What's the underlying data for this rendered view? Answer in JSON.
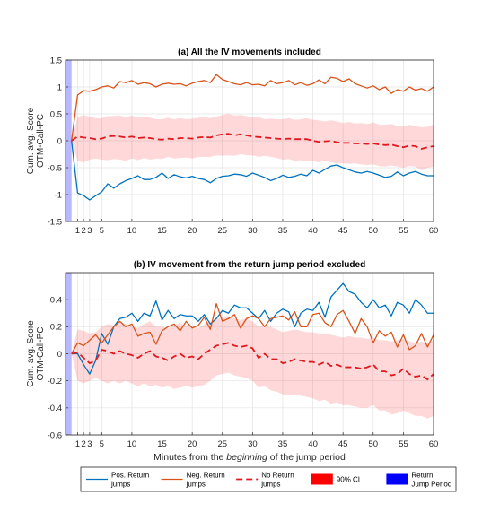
{
  "chart_data": [
    {
      "type": "line",
      "title": "(a) All the IV movements included",
      "ylabel_line1": "Cum. avg. Score",
      "ylabel_line2": "OTM-Call-PC",
      "xlabel": "",
      "xlim": [
        -1,
        60
      ],
      "ylim": [
        -1.5,
        1.5
      ],
      "xticks": [
        1,
        2,
        3,
        5,
        10,
        15,
        20,
        25,
        30,
        35,
        40,
        45,
        50,
        55,
        60
      ],
      "yticks": [
        -1.5,
        -1,
        -0.5,
        0,
        0.5,
        1,
        1.5
      ],
      "ytick_labels": [
        "-1.5",
        "-1",
        "-0.5",
        "0",
        "0.5",
        "1",
        "1.5"
      ],
      "grid": true,
      "jump_period": [
        -1,
        0
      ],
      "x": [
        0,
        1,
        2,
        3,
        4,
        5,
        6,
        7,
        8,
        9,
        10,
        11,
        12,
        13,
        14,
        15,
        16,
        17,
        18,
        19,
        20,
        21,
        22,
        23,
        24,
        25,
        26,
        27,
        28,
        29,
        30,
        31,
        32,
        33,
        34,
        35,
        36,
        37,
        38,
        39,
        40,
        41,
        42,
        43,
        44,
        45,
        46,
        47,
        48,
        49,
        50,
        51,
        52,
        53,
        54,
        55,
        56,
        57,
        58,
        59,
        60
      ],
      "series": [
        {
          "name": "Pos. Return jumps",
          "color": "#0072BD",
          "style": "solid",
          "values": [
            0,
            -0.97,
            -1.02,
            -1.1,
            -1.02,
            -0.95,
            -0.8,
            -0.88,
            -0.8,
            -0.74,
            -0.7,
            -0.65,
            -0.72,
            -0.72,
            -0.68,
            -0.6,
            -0.7,
            -0.63,
            -0.67,
            -0.69,
            -0.66,
            -0.7,
            -0.72,
            -0.78,
            -0.7,
            -0.66,
            -0.65,
            -0.62,
            -0.63,
            -0.66,
            -0.6,
            -0.64,
            -0.68,
            -0.74,
            -0.7,
            -0.64,
            -0.68,
            -0.66,
            -0.62,
            -0.65,
            -0.55,
            -0.6,
            -0.53,
            -0.47,
            -0.45,
            -0.5,
            -0.54,
            -0.58,
            -0.6,
            -0.57,
            -0.6,
            -0.64,
            -0.68,
            -0.66,
            -0.58,
            -0.65,
            -0.6,
            -0.57,
            -0.62,
            -0.65,
            -0.65
          ]
        },
        {
          "name": "Neg. Return jumps",
          "color": "#D95319",
          "style": "solid",
          "values": [
            0,
            0.85,
            0.93,
            0.92,
            0.95,
            1.0,
            1.02,
            0.98,
            1.1,
            1.08,
            1.12,
            1.05,
            1.08,
            1.06,
            1.0,
            1.05,
            1.07,
            1.05,
            1.06,
            1.02,
            1.07,
            1.1,
            1.12,
            1.08,
            1.23,
            1.14,
            1.1,
            1.06,
            1.04,
            1.08,
            1.04,
            1.05,
            1.02,
            1.12,
            1.06,
            1.08,
            1.12,
            1.04,
            1.08,
            1.03,
            1.06,
            1.13,
            1.06,
            1.18,
            1.16,
            1.1,
            1.15,
            1.06,
            1.02,
            0.98,
            1.02,
            0.95,
            1.0,
            0.88,
            0.95,
            0.92,
            1.0,
            0.94,
            0.97,
            0.92,
            1.0
          ]
        },
        {
          "name": "No Return jumps",
          "color": "#E0181F",
          "style": "dashed",
          "values": [
            0,
            0.08,
            0.06,
            0.05,
            0.03,
            0.04,
            0.08,
            0.09,
            0.08,
            0.06,
            0.08,
            0.05,
            0.06,
            0.05,
            0.03,
            0.02,
            0.04,
            0.03,
            0.05,
            0.05,
            0.04,
            0.06,
            0.07,
            0.06,
            0.1,
            0.12,
            0.13,
            0.1,
            0.12,
            0.1,
            0.08,
            0.07,
            0.06,
            0.05,
            0.04,
            0.03,
            0.04,
            0.03,
            0.03,
            0.03,
            0.0,
            -0.02,
            -0.01,
            0.0,
            -0.03,
            -0.04,
            -0.04,
            -0.05,
            -0.05,
            -0.06,
            -0.05,
            -0.07,
            -0.08,
            -0.07,
            -0.1,
            -0.12,
            -0.09,
            -0.1,
            -0.15,
            -0.12,
            -0.1
          ]
        }
      ],
      "ci_band": {
        "name": "90% CI",
        "color": "#FF0000",
        "lower": [
          0,
          -0.38,
          -0.4,
          -0.35,
          -0.33,
          -0.35,
          -0.36,
          -0.34,
          -0.35,
          -0.37,
          -0.33,
          -0.36,
          -0.32,
          -0.35,
          -0.33,
          -0.34,
          -0.3,
          -0.33,
          -0.32,
          -0.31,
          -0.33,
          -0.3,
          -0.3,
          -0.3,
          -0.27,
          -0.28,
          -0.27,
          -0.28,
          -0.25,
          -0.27,
          -0.27,
          -0.3,
          -0.28,
          -0.3,
          -0.32,
          -0.35,
          -0.34,
          -0.37,
          -0.36,
          -0.38,
          -0.38,
          -0.4,
          -0.37,
          -0.4,
          -0.42,
          -0.42,
          -0.43,
          -0.42,
          -0.44,
          -0.45,
          -0.44,
          -0.47,
          -0.48,
          -0.46,
          -0.48,
          -0.5,
          -0.47,
          -0.48,
          -0.55,
          -0.5,
          -0.48
        ],
        "upper": [
          0,
          0.44,
          0.48,
          0.45,
          0.42,
          0.42,
          0.46,
          0.46,
          0.47,
          0.44,
          0.47,
          0.43,
          0.45,
          0.43,
          0.4,
          0.4,
          0.43,
          0.4,
          0.42,
          0.4,
          0.41,
          0.43,
          0.44,
          0.42,
          0.45,
          0.48,
          0.5,
          0.47,
          0.48,
          0.46,
          0.43,
          0.44,
          0.4,
          0.41,
          0.4,
          0.4,
          0.42,
          0.39,
          0.4,
          0.42,
          0.39,
          0.38,
          0.36,
          0.38,
          0.36,
          0.33,
          0.35,
          0.32,
          0.33,
          0.31,
          0.34,
          0.3,
          0.3,
          0.31,
          0.28,
          0.26,
          0.3,
          0.27,
          0.25,
          0.26,
          0.3
        ]
      }
    },
    {
      "type": "line",
      "title": "(b) IV movement from the return jump period excluded",
      "ylabel_line1": "Cum. avg. Score",
      "ylabel_line2": "OTM-Call-PC",
      "xlabel_pre": "Minutes from the ",
      "xlabel_em": "beginning",
      "xlabel_post": " of the jump period",
      "xlim": [
        -1,
        60
      ],
      "ylim": [
        -0.6,
        0.6
      ],
      "xticks": [
        1,
        2,
        3,
        5,
        10,
        15,
        20,
        25,
        30,
        35,
        40,
        45,
        50,
        55,
        60
      ],
      "yticks": [
        -0.6,
        -0.4,
        -0.2,
        0,
        0.2,
        0.4
      ],
      "ytick_labels": [
        "-0.6",
        "-0.4",
        "-0.2",
        "0",
        "0.2",
        "0.4"
      ],
      "grid": true,
      "jump_period": [
        -1,
        0
      ],
      "x": [
        0,
        1,
        2,
        3,
        4,
        5,
        6,
        7,
        8,
        9,
        10,
        11,
        12,
        13,
        14,
        15,
        16,
        17,
        18,
        19,
        20,
        21,
        22,
        23,
        24,
        25,
        26,
        27,
        28,
        29,
        30,
        31,
        32,
        33,
        34,
        35,
        36,
        37,
        38,
        39,
        40,
        41,
        42,
        43,
        44,
        45,
        46,
        47,
        48,
        49,
        50,
        51,
        52,
        53,
        54,
        55,
        56,
        57,
        58,
        59,
        60
      ],
      "series": [
        {
          "name": "Pos. Return jumps",
          "color": "#0072BD",
          "style": "solid",
          "values": [
            0,
            0.0,
            -0.08,
            -0.15,
            -0.05,
            0.15,
            0.07,
            0.2,
            0.26,
            0.27,
            0.3,
            0.24,
            0.3,
            0.28,
            0.39,
            0.25,
            0.32,
            0.26,
            0.29,
            0.28,
            0.28,
            0.24,
            0.29,
            0.22,
            0.26,
            0.32,
            0.3,
            0.36,
            0.34,
            0.34,
            0.3,
            0.26,
            0.32,
            0.24,
            0.3,
            0.33,
            0.31,
            0.2,
            0.3,
            0.33,
            0.32,
            0.38,
            0.27,
            0.42,
            0.47,
            0.52,
            0.46,
            0.44,
            0.38,
            0.34,
            0.4,
            0.34,
            0.36,
            0.28,
            0.38,
            0.36,
            0.3,
            0.4,
            0.36,
            0.3,
            0.3
          ]
        },
        {
          "name": "Neg. Return jumps",
          "color": "#D95319",
          "style": "solid",
          "values": [
            0,
            0.08,
            0.06,
            0.1,
            0.14,
            0.08,
            0.14,
            0.2,
            0.24,
            0.2,
            0.22,
            0.13,
            0.15,
            0.16,
            0.07,
            0.17,
            0.2,
            0.22,
            0.17,
            0.24,
            0.19,
            0.21,
            0.27,
            0.18,
            0.37,
            0.24,
            0.26,
            0.29,
            0.19,
            0.26,
            0.28,
            0.26,
            0.2,
            0.26,
            0.27,
            0.28,
            0.25,
            0.31,
            0.2,
            0.2,
            0.29,
            0.3,
            0.23,
            0.2,
            0.29,
            0.32,
            0.24,
            0.15,
            0.26,
            0.2,
            0.08,
            0.17,
            0.13,
            0.16,
            0.05,
            0.14,
            0.03,
            0.06,
            0.15,
            0.05,
            0.14
          ]
        },
        {
          "name": "No Return jumps",
          "color": "#E0181F",
          "style": "dashed",
          "values": [
            0,
            0.01,
            -0.03,
            -0.07,
            -0.05,
            0.03,
            0.02,
            0.0,
            0.02,
            0.0,
            -0.01,
            -0.03,
            0.0,
            0.02,
            -0.02,
            -0.03,
            -0.05,
            -0.02,
            0.0,
            -0.03,
            -0.02,
            -0.04,
            0.0,
            0.03,
            0.06,
            0.07,
            0.08,
            0.06,
            0.05,
            0.06,
            0.04,
            -0.03,
            0.0,
            -0.04,
            -0.04,
            -0.07,
            -0.06,
            -0.04,
            -0.05,
            -0.06,
            -0.06,
            -0.08,
            -0.06,
            -0.09,
            -0.08,
            -0.1,
            -0.1,
            -0.1,
            -0.11,
            -0.1,
            -0.08,
            -0.13,
            -0.13,
            -0.16,
            -0.15,
            -0.11,
            -0.15,
            -0.17,
            -0.16,
            -0.19,
            -0.15
          ]
        }
      ],
      "ci_band": {
        "name": "90% CI",
        "color": "#FF0000",
        "lower": [
          0,
          -0.2,
          -0.22,
          -0.2,
          -0.18,
          -0.2,
          -0.22,
          -0.2,
          -0.22,
          -0.2,
          -0.22,
          -0.24,
          -0.22,
          -0.24,
          -0.23,
          -0.25,
          -0.24,
          -0.26,
          -0.25,
          -0.24,
          -0.25,
          -0.24,
          -0.23,
          -0.2,
          -0.16,
          -0.15,
          -0.14,
          -0.16,
          -0.17,
          -0.18,
          -0.2,
          -0.25,
          -0.24,
          -0.27,
          -0.28,
          -0.3,
          -0.31,
          -0.3,
          -0.31,
          -0.32,
          -0.33,
          -0.35,
          -0.34,
          -0.37,
          -0.36,
          -0.38,
          -0.38,
          -0.39,
          -0.4,
          -0.4,
          -0.38,
          -0.42,
          -0.42,
          -0.45,
          -0.44,
          -0.42,
          -0.44,
          -0.46,
          -0.46,
          -0.48,
          -0.46
        ],
        "upper": [
          0,
          0.18,
          0.17,
          0.15,
          0.16,
          0.2,
          0.22,
          0.21,
          0.24,
          0.22,
          0.2,
          0.19,
          0.22,
          0.24,
          0.2,
          0.2,
          0.19,
          0.21,
          0.23,
          0.2,
          0.21,
          0.19,
          0.22,
          0.24,
          0.26,
          0.27,
          0.28,
          0.26,
          0.25,
          0.26,
          0.24,
          0.2,
          0.2,
          0.2,
          0.18,
          0.16,
          0.17,
          0.18,
          0.17,
          0.16,
          0.16,
          0.15,
          0.15,
          0.14,
          0.13,
          0.12,
          0.13,
          0.12,
          0.12,
          0.11,
          0.12,
          0.1,
          0.1,
          0.09,
          0.1,
          0.11,
          0.09,
          0.08,
          0.09,
          0.08,
          0.1
        ]
      }
    }
  ],
  "legend": {
    "placement": "bottom",
    "items": [
      {
        "label_line1": "Pos. Return",
        "label_line2": "jumps",
        "kind": "line",
        "color": "#0072BD",
        "dash": ""
      },
      {
        "label_line1": "Neg. Return",
        "label_line2": "jumps",
        "kind": "line",
        "color": "#D95319",
        "dash": ""
      },
      {
        "label_line1": "No Return",
        "label_line2": "jumps",
        "kind": "line",
        "color": "#E0181F",
        "dash": "7,4"
      },
      {
        "label_line1": "90% CI",
        "label_line2": "",
        "kind": "patch",
        "color": "#FF0000",
        "dash": ""
      },
      {
        "label_line1": "Return",
        "label_line2": "Jump Period",
        "kind": "patch",
        "color": "#0000FF",
        "dash": ""
      }
    ]
  }
}
